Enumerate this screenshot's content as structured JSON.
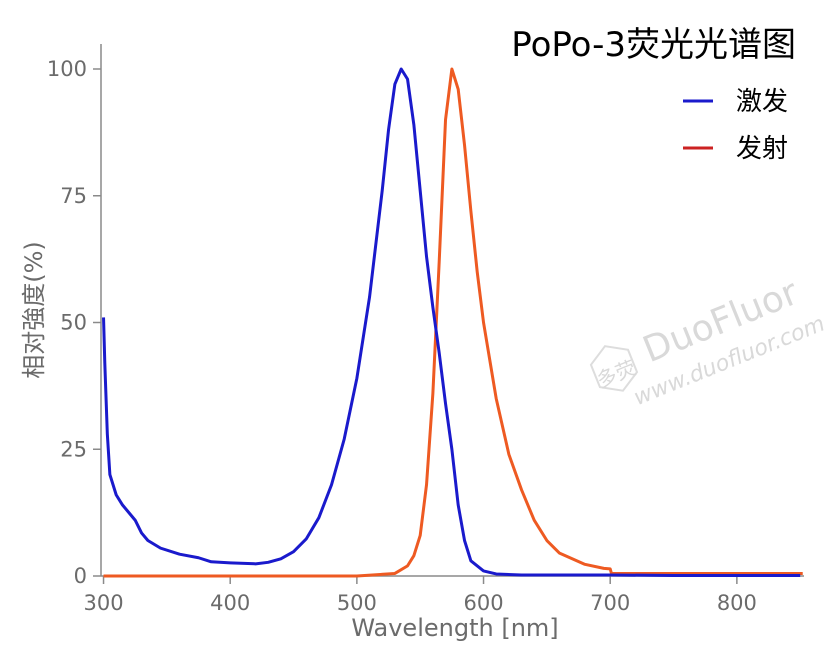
{
  "chart_data": {
    "type": "line",
    "title": "PoPo-3荧光光谱图",
    "xlabel": "Wavelength [nm]",
    "ylabel": "相对強度(%)",
    "xlim": [
      298,
      853
    ],
    "ylim": [
      0,
      105
    ],
    "xticks": [
      300,
      400,
      500,
      600,
      700,
      800
    ],
    "yticks": [
      0,
      25,
      50,
      75,
      100
    ],
    "legend_position": "top-right",
    "grid": false,
    "series": [
      {
        "name": "激发",
        "legend_color": "#cc2222",
        "color": "#1a1acc",
        "points": [
          [
            300,
            51
          ],
          [
            301,
            42
          ],
          [
            303,
            28
          ],
          [
            305,
            20
          ],
          [
            310,
            16
          ],
          [
            315,
            14
          ],
          [
            320,
            12.5
          ],
          [
            325,
            11
          ],
          [
            330,
            8.5
          ],
          [
            335,
            7
          ],
          [
            345,
            5.5
          ],
          [
            360,
            4.3
          ],
          [
            375,
            3.6
          ],
          [
            385,
            2.8
          ],
          [
            400,
            2.6
          ],
          [
            420,
            2.4
          ],
          [
            430,
            2.7
          ],
          [
            440,
            3.4
          ],
          [
            450,
            4.8
          ],
          [
            460,
            7.3
          ],
          [
            470,
            11.5
          ],
          [
            480,
            18
          ],
          [
            490,
            27
          ],
          [
            500,
            39
          ],
          [
            510,
            55
          ],
          [
            520,
            76
          ],
          [
            525,
            88
          ],
          [
            530,
            97
          ],
          [
            535,
            100
          ],
          [
            540,
            98
          ],
          [
            545,
            89
          ],
          [
            550,
            76
          ],
          [
            555,
            63
          ],
          [
            560,
            53
          ],
          [
            565,
            44
          ],
          [
            570,
            34
          ],
          [
            575,
            25
          ],
          [
            580,
            14
          ],
          [
            585,
            7
          ],
          [
            590,
            3
          ],
          [
            600,
            1
          ],
          [
            610,
            0.4
          ],
          [
            630,
            0.2
          ],
          [
            660,
            0.2
          ],
          [
            700,
            0.2
          ],
          [
            750,
            0.1
          ],
          [
            800,
            0.1
          ],
          [
            850,
            0.1
          ]
        ]
      },
      {
        "name": "发射",
        "legend_color": "#cc2222",
        "color": "#ee5a22",
        "points": [
          [
            300,
            0
          ],
          [
            400,
            0
          ],
          [
            500,
            0
          ],
          [
            530,
            0.5
          ],
          [
            540,
            2
          ],
          [
            545,
            4
          ],
          [
            550,
            8
          ],
          [
            555,
            18
          ],
          [
            560,
            36
          ],
          [
            565,
            62
          ],
          [
            570,
            90
          ],
          [
            575,
            100
          ],
          [
            580,
            96
          ],
          [
            585,
            85
          ],
          [
            590,
            72
          ],
          [
            595,
            60
          ],
          [
            600,
            50
          ],
          [
            610,
            35
          ],
          [
            620,
            24
          ],
          [
            630,
            17
          ],
          [
            640,
            11
          ],
          [
            650,
            7
          ],
          [
            660,
            4.5
          ],
          [
            680,
            2.3
          ],
          [
            695,
            1.5
          ],
          [
            700,
            1.4
          ],
          [
            701,
            0.5
          ],
          [
            720,
            0.5
          ],
          [
            760,
            0.5
          ],
          [
            800,
            0.5
          ],
          [
            852,
            0.5
          ]
        ]
      }
    ]
  },
  "watermark": {
    "cn": "多荧",
    "brand": "DuoFluor",
    "url": "www.duofluor.com"
  }
}
